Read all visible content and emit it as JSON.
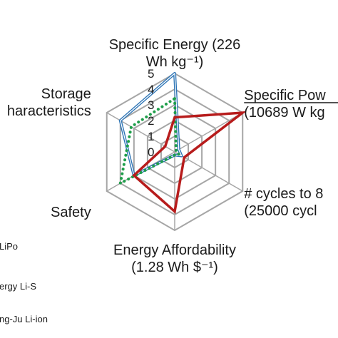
{
  "chart_data": {
    "type": "radar",
    "axes": [
      {
        "lines": [
          "Specific Energy (226",
          "Wh kg⁻¹)"
        ]
      },
      {
        "lines": [
          "Specific Pow",
          "(10689 W kg"
        ]
      },
      {
        "lines": [
          "# cycles to 8",
          "(25000 cycl"
        ]
      },
      {
        "lines": [
          "Energy Affordability",
          "(1.28 Wh $⁻¹)"
        ]
      },
      {
        "lines": [
          "Safety"
        ]
      },
      {
        "lines": [
          "Storage",
          "haracteristics"
        ]
      }
    ],
    "ticks": [
      "0",
      "1",
      "2",
      "3",
      "4",
      "5"
    ],
    "range": [
      0,
      5
    ],
    "grid": "hexagonal",
    "series": [
      {
        "name": "LiPo",
        "color": "#2e75b6",
        "style": "double-line",
        "values": [
          5,
          0.3,
          0.5,
          0.2,
          3,
          4
        ]
      },
      {
        "name": "ergy Li-S",
        "color": "#1e9e4a",
        "style": "dotted",
        "values": [
          3.4,
          0.1,
          0.3,
          0.2,
          4,
          3.2
        ]
      },
      {
        "name": "ng-Ju Li-ion",
        "color": "#b71c1c",
        "style": "solid",
        "values": [
          2.2,
          5,
          0.7,
          3.8,
          3,
          0.7
        ]
      }
    ],
    "legend": {
      "placement": "bottom-left",
      "visible_labels": [
        "LiPo",
        "ergy Li-S",
        "ng-Ju Li-ion"
      ]
    }
  }
}
